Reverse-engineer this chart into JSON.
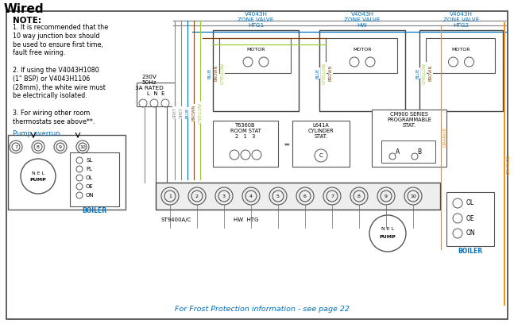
{
  "title": "Wired",
  "bg_color": "#ffffff",
  "frost_text": "For Frost Protection information - see page 22",
  "wire_colors": {
    "grey": "#888888",
    "blue": "#0070c0",
    "brown": "#8B4513",
    "g_yellow": "#9acd32",
    "orange": "#FF8C00"
  },
  "note_lines": [
    "1. It is recommended that the",
    "10 way junction box should",
    "be used to ensure first time,",
    "fault free wiring.",
    "",
    "2. If using the V4043H1080",
    "(1\" BSP) or V4043H1106",
    "(28mm), the white wire must",
    "be electrically isolated.",
    "",
    "3. For wiring other room",
    "thermostats see above**."
  ],
  "boiler_right_labels": [
    "OL",
    "OE",
    "ON"
  ],
  "pump_overrun_terminals": [
    7,
    8,
    9,
    10
  ],
  "pump_left_labels": [
    "SL",
    "PL",
    "OL",
    "OE",
    "ON"
  ],
  "terminal_count": 10,
  "valve_labels": [
    [
      "V4043H",
      "ZONE VALVE",
      "HTG1"
    ],
    [
      "V4043H",
      "ZONE VALVE",
      "HW"
    ],
    [
      "V4043H",
      "ZONE VALVE",
      "HTG2"
    ]
  ]
}
